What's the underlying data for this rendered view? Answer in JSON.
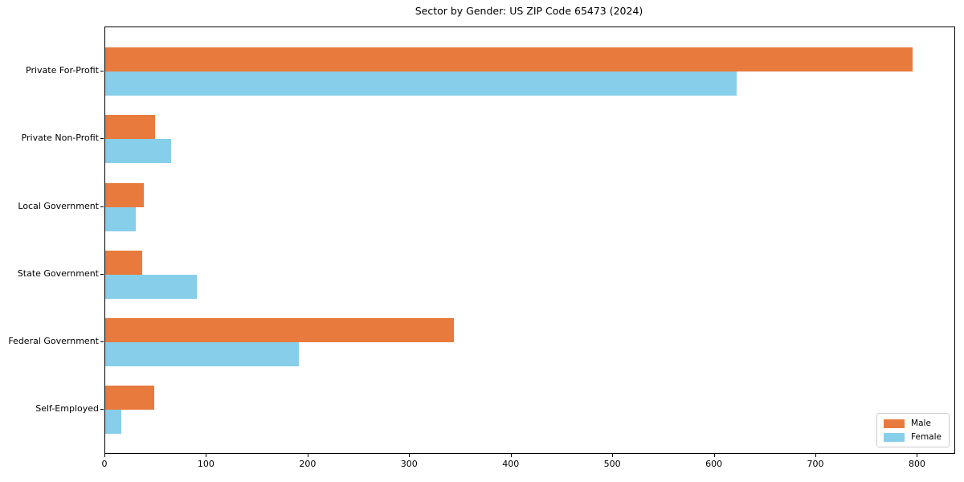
{
  "chart_data": {
    "type": "bar",
    "orientation": "horizontal",
    "title": "Sector by Gender: US ZIP Code 65473 (2024)",
    "categories": [
      "Private For-Profit",
      "Private Non-Profit",
      "Local Government",
      "State Government",
      "Federal Government",
      "Self-Employed"
    ],
    "series": [
      {
        "name": "Male",
        "color": "#e87a3d",
        "values": [
          795,
          49,
          38,
          36,
          343,
          48
        ]
      },
      {
        "name": "Female",
        "color": "#87ceeb",
        "values": [
          622,
          65,
          30,
          90,
          191,
          16
        ]
      }
    ],
    "xlabel": "",
    "ylabel": "",
    "xlim": [
      0,
      836
    ],
    "xticks": [
      0,
      100,
      200,
      300,
      400,
      500,
      600,
      700,
      800
    ],
    "grid": false,
    "legend_position": "lower right",
    "spine_color": "#000000",
    "background_color": "#ffffff"
  }
}
